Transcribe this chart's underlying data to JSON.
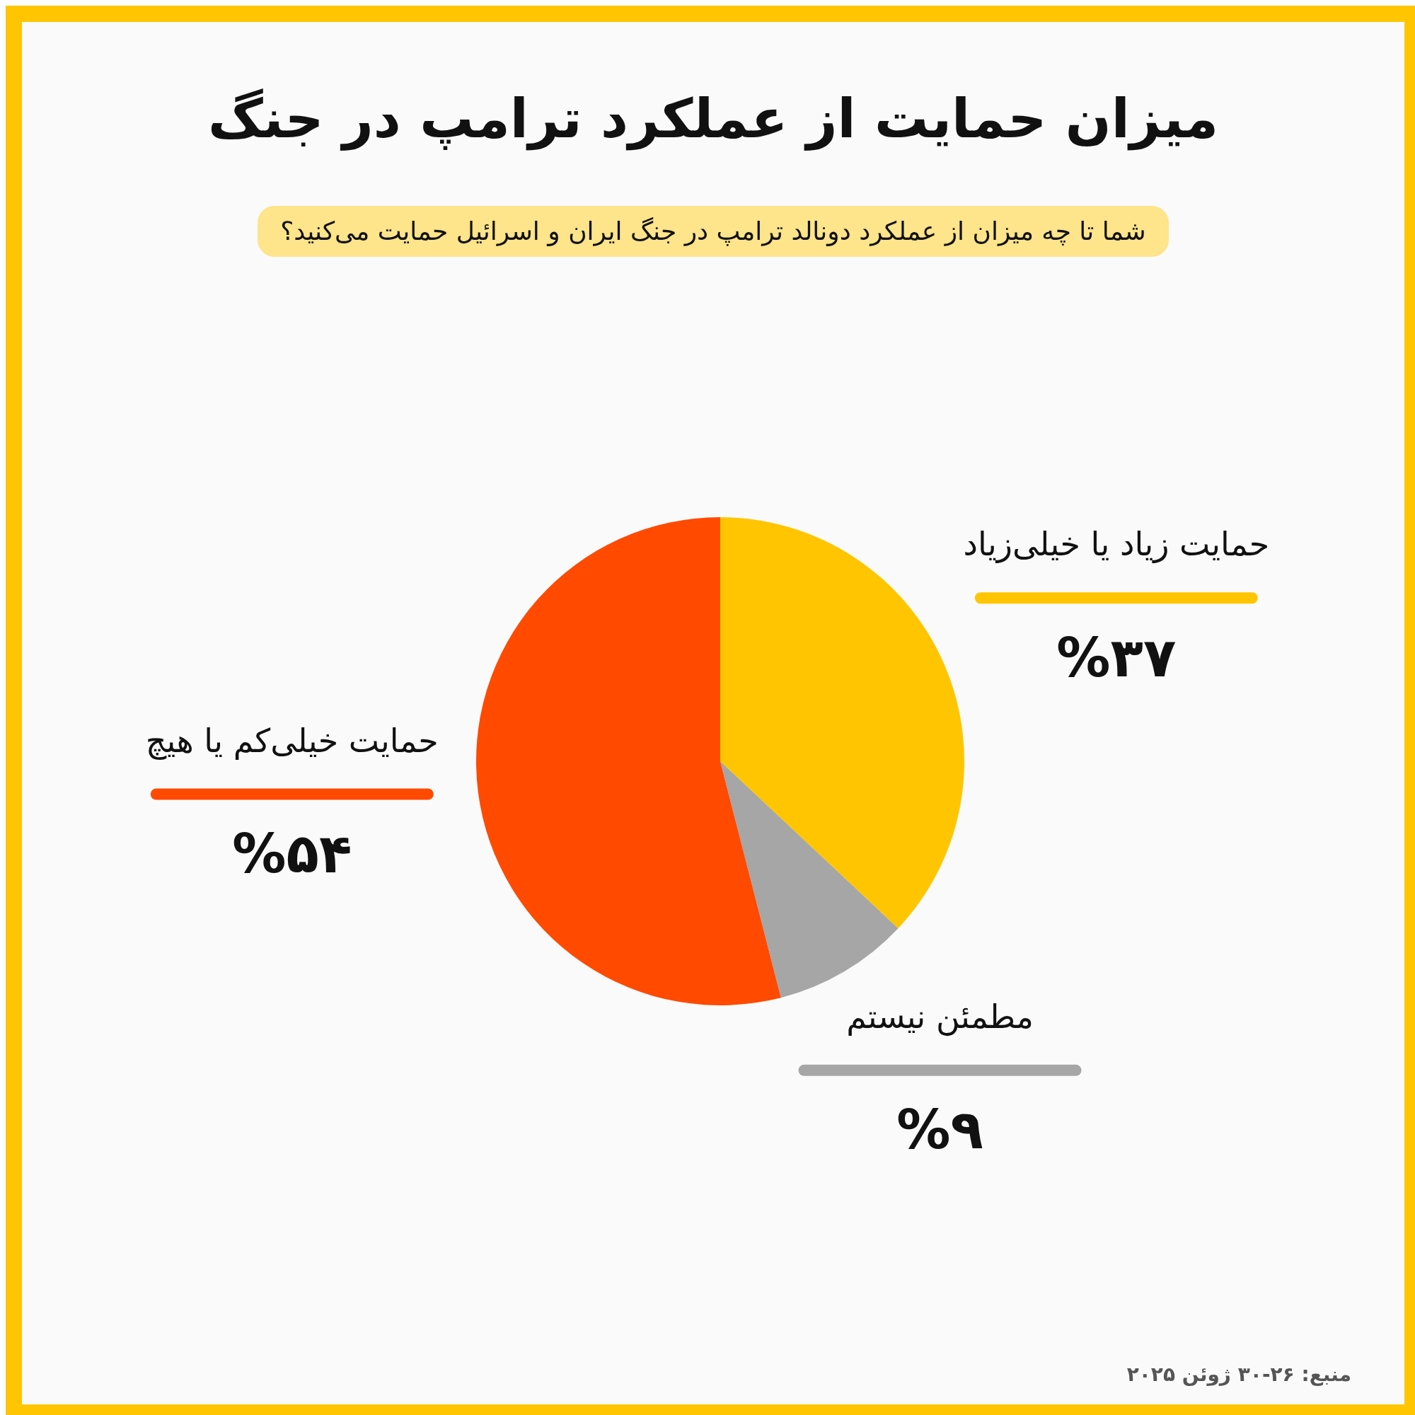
{
  "chart_data": {
    "type": "pie",
    "title": "میزان حمایت از عملکرد ترامپ در جنگ",
    "subtitle": "شما تا چه میزان از عملکرد دونالد ترامپ در جنگ ایران و اسرائیل حمایت می‌کنید؟",
    "categories": [
      "حمایت زیاد یا خیلی‌زیاد",
      "مطمئن نیستم",
      "حمایت خیلی‌کم یا هیچ"
    ],
    "values": [
      37,
      9,
      54
    ],
    "colors": [
      "#ffc600",
      "#a6a6a6",
      "#ff4a00"
    ],
    "value_labels": [
      "%۳۷",
      "%۹",
      "%۵۴"
    ],
    "annotations": [
      "منبع: ۲۶-۳۰ ژوئن ۲۰۲۵"
    ]
  }
}
